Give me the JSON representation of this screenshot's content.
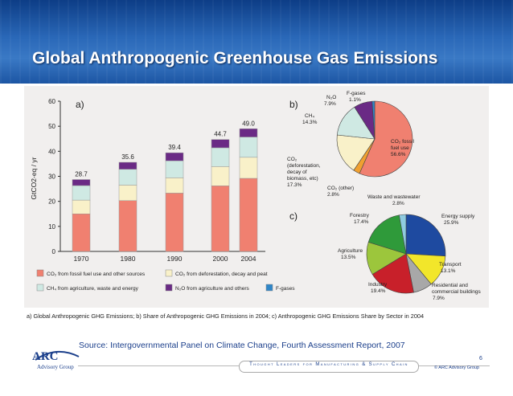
{
  "slide": {
    "title": "Global Anthropogenic Greenhouse Gas Emissions",
    "caption": "a) Global Anthropogenic GHG Emissions; b) Share of Anthropogenic GHG Emissions in 2004; c) Anthropogenic GHG Emissions Share by Sector in 2004",
    "source": "Source:   Intergovernmental Panel on Climate Change, Fourth Assessment Report, 2007",
    "page_number": "6",
    "copyright": "© ARC Advisory Group",
    "tagline": "Thought Leaders for Manufacturing & Supply Chain",
    "logo_text": "ARC",
    "logo_subtext": "Advisory Group"
  },
  "chart_data": [
    {
      "type": "bar",
      "panel_label": "a)",
      "ylabel": "GtCO2-eq / yr",
      "ylim": [
        0,
        60
      ],
      "yticks": [
        0,
        10,
        20,
        30,
        40,
        50,
        60
      ],
      "categories": [
        "1970",
        "1980",
        "1990",
        "2000",
        "2004"
      ],
      "stacked": true,
      "totals": [
        "28.7",
        "35.6",
        "39.4",
        "44.7",
        "49.0"
      ],
      "series": [
        {
          "name": "CO2 from fossil fuel use and other sources",
          "color": "#f08070",
          "values": [
            15.0,
            20.3,
            23.3,
            26.2,
            29.2
          ]
        },
        {
          "name": "CO2 from deforestation, decay and peat",
          "color": "#f9f1c9",
          "values": [
            5.5,
            6.2,
            6.1,
            7.7,
            8.4
          ]
        },
        {
          "name": "CH4 from agriculture, waste and energy",
          "color": "#cfe9e3",
          "values": [
            5.8,
            6.3,
            6.8,
            7.5,
            8.1
          ]
        },
        {
          "name": "N2O from agriculture and others",
          "color": "#6a2a85",
          "values": [
            2.4,
            2.8,
            3.2,
            3.3,
            3.3
          ]
        },
        {
          "name": "F-gases",
          "color": "#2f86c8",
          "values": [
            0.0,
            0.0,
            0.0,
            0.0,
            0.0
          ]
        }
      ],
      "legend_labels": [
        "CO₂ from fossil fuel use and other sources",
        "CO₂ from deforestation, decay and peat",
        "CH₄ from agriculture, waste and energy",
        "N₂O from agriculture and others",
        "F-gases"
      ],
      "legend_placement": "bottom",
      "grid": false
    },
    {
      "type": "pie",
      "panel_label": "b)",
      "slices": [
        {
          "label": "CO₂ fossil fuel use",
          "value": 56.6,
          "value_text": "56.6%",
          "color": "#f08070"
        },
        {
          "label": "CO₂ (other)",
          "value": 2.8,
          "value_text": "2.8%",
          "color": "#f0a030"
        },
        {
          "label": "CO₂ (deforestation, decay of biomass, etc)",
          "value": 17.3,
          "value_text": "17.3%",
          "color": "#f9f1c9"
        },
        {
          "label": "CH₄",
          "value": 14.3,
          "value_text": "14.3%",
          "color": "#cfe9e3"
        },
        {
          "label": "N₂O",
          "value": 7.9,
          "value_text": "7.9%",
          "color": "#6a2a85"
        },
        {
          "label": "F-gases",
          "value": 1.1,
          "value_text": "1.1%",
          "color": "#2f86c8"
        }
      ]
    },
    {
      "type": "pie",
      "panel_label": "c)",
      "slices": [
        {
          "label": "Energy supply",
          "value": 25.9,
          "value_text": "25.9%",
          "color": "#1e4aa0"
        },
        {
          "label": "Transport",
          "value": 13.1,
          "value_text": "13.1%",
          "color": "#f2e62a"
        },
        {
          "label": "Residential and commercial buildings",
          "value": 7.9,
          "value_text": "7.9%",
          "color": "#a8a8a8"
        },
        {
          "label": "Industry",
          "value": 19.4,
          "value_text": "19.4%",
          "color": "#c8202a"
        },
        {
          "label": "Agriculture",
          "value": 13.5,
          "value_text": "13.5%",
          "color": "#9cc63c"
        },
        {
          "label": "Forestry",
          "value": 17.4,
          "value_text": "17.4%",
          "color": "#2f9a3a"
        },
        {
          "label": "Waste and wastewater",
          "value": 2.8,
          "value_text": "2.8%",
          "color": "#8fcbe0"
        }
      ]
    }
  ]
}
